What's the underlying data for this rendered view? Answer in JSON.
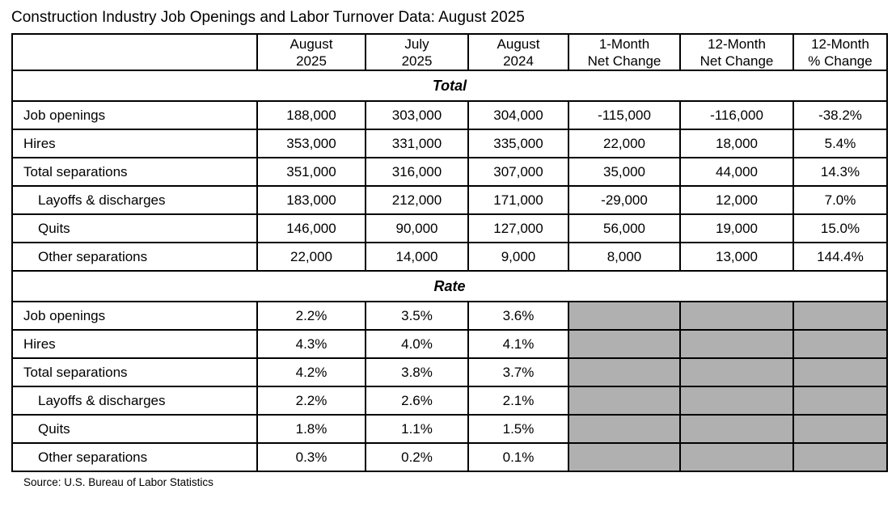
{
  "title": "Construction Industry Job Openings and Labor Turnover Data: August 2025",
  "source": "Source: U.S. Bureau of Labor Statistics",
  "colors": {
    "grid": "#000000",
    "empty_cell": "#b0b0b0",
    "background": "#ffffff",
    "text": "#000000"
  },
  "chart_data": {
    "type": "table",
    "title": "Construction Industry Job Openings and Labor Turnover Data: August 2025",
    "columns": [
      "",
      "August 2025",
      "July 2025",
      "August 2024",
      "1-Month Net Change",
      "12-Month Net Change",
      "12-Month % Change"
    ],
    "header_lines": [
      [
        "August",
        "2025"
      ],
      [
        "July",
        "2025"
      ],
      [
        "August",
        "2024"
      ],
      [
        "1-Month",
        "Net Change"
      ],
      [
        "12-Month",
        "Net Change"
      ],
      [
        "12-Month",
        "% Change"
      ]
    ],
    "sections": [
      {
        "label": "Total",
        "rows": [
          {
            "label": "Job openings",
            "indent": false,
            "values": [
              "188,000",
              "303,000",
              "304,000",
              "-115,000",
              "-116,000",
              "-38.2%"
            ]
          },
          {
            "label": "Hires",
            "indent": false,
            "values": [
              "353,000",
              "331,000",
              "335,000",
              "22,000",
              "18,000",
              "5.4%"
            ]
          },
          {
            "label": "Total separations",
            "indent": false,
            "values": [
              "351,000",
              "316,000",
              "307,000",
              "35,000",
              "44,000",
              "14.3%"
            ]
          },
          {
            "label": "Layoffs & discharges",
            "indent": true,
            "values": [
              "183,000",
              "212,000",
              "171,000",
              "-29,000",
              "12,000",
              "7.0%"
            ]
          },
          {
            "label": "Quits",
            "indent": true,
            "values": [
              "146,000",
              "90,000",
              "127,000",
              "56,000",
              "19,000",
              "15.0%"
            ]
          },
          {
            "label": "Other separations",
            "indent": true,
            "values": [
              "22,000",
              "14,000",
              "9,000",
              "8,000",
              "13,000",
              "144.4%"
            ]
          }
        ]
      },
      {
        "label": "Rate",
        "rows": [
          {
            "label": "Job openings",
            "indent": false,
            "values": [
              "2.2%",
              "3.5%",
              "3.6%",
              null,
              null,
              null
            ]
          },
          {
            "label": "Hires",
            "indent": false,
            "values": [
              "4.3%",
              "4.0%",
              "4.1%",
              null,
              null,
              null
            ]
          },
          {
            "label": "Total separations",
            "indent": false,
            "values": [
              "4.2%",
              "3.8%",
              "3.7%",
              null,
              null,
              null
            ]
          },
          {
            "label": "Layoffs & discharges",
            "indent": true,
            "values": [
              "2.2%",
              "2.6%",
              "2.1%",
              null,
              null,
              null
            ]
          },
          {
            "label": "Quits",
            "indent": true,
            "values": [
              "1.8%",
              "1.1%",
              "1.5%",
              null,
              null,
              null
            ]
          },
          {
            "label": "Other separations",
            "indent": true,
            "values": [
              "0.3%",
              "0.2%",
              "0.1%",
              null,
              null,
              null
            ]
          }
        ]
      }
    ]
  }
}
